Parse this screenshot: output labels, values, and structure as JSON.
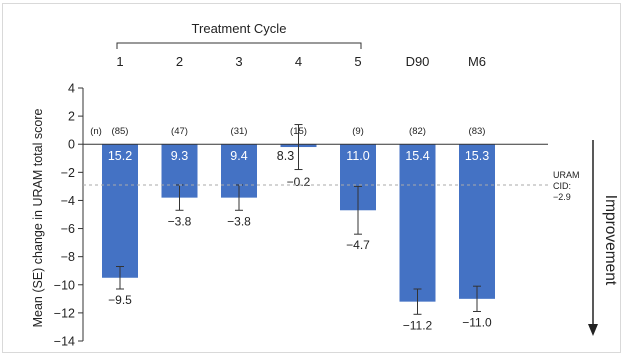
{
  "chart_data": {
    "type": "bar",
    "title": "",
    "ylabel": "Mean (SE) change in URAM total score",
    "ylim": [
      -14,
      4
    ],
    "yticks": [
      4,
      2,
      0,
      -2,
      -4,
      -6,
      -8,
      -10,
      -12,
      -14
    ],
    "group_label": "Treatment Cycle",
    "categories": [
      "1",
      "2",
      "3",
      "4",
      "5",
      "D90",
      "M6"
    ],
    "values": [
      -9.5,
      -3.8,
      -3.8,
      -0.2,
      -4.7,
      -11.2,
      -11.0
    ],
    "se": [
      0.8,
      0.9,
      0.9,
      1.6,
      1.7,
      0.9,
      0.9
    ],
    "n_header": "(n)",
    "n_labels": [
      "(85)",
      "(47)",
      "(31)",
      "(15)",
      "(9)",
      "(82)",
      "(83)"
    ],
    "baseline_labels": [
      "15.2",
      "9.3",
      "9.4",
      "8.3",
      "11.0",
      "15.4",
      "15.3"
    ],
    "value_labels": [
      "−9.5",
      "−3.8",
      "−3.8",
      "−0.2",
      "−4.7",
      "−11.2",
      "−11.0"
    ],
    "cid": {
      "value": -2.9,
      "label_lines": [
        "URAM",
        "CID:",
        "−2.9"
      ]
    },
    "improvement_label": "Improvement",
    "bar_color": "#4472c4"
  }
}
